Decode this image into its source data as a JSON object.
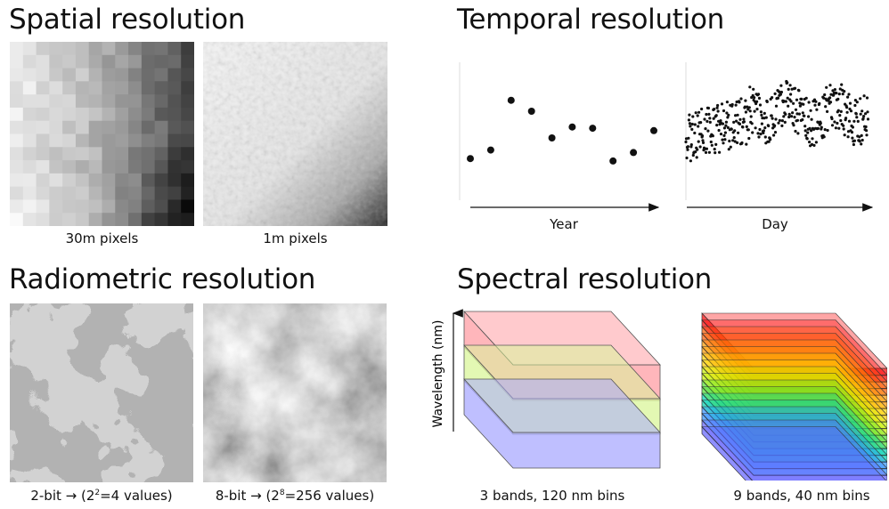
{
  "spatial": {
    "title": "Spatial resolution",
    "caption_coarse": "30m pixels",
    "caption_fine": "1m pixels"
  },
  "temporal": {
    "title": "Temporal resolution",
    "axis_year": "Year",
    "axis_day": "Day",
    "yearly_values": [
      0.45,
      0.52,
      0.93,
      0.84,
      0.62,
      0.71,
      0.7,
      0.43,
      0.5,
      0.68
    ]
  },
  "radiometric": {
    "title": "Radiometric resolution",
    "caption_2bit_a": "2-bit → (2",
    "caption_2bit_sup": "2",
    "caption_2bit_b": "=4 values)",
    "caption_8bit_a": "8-bit → (2",
    "caption_8bit_sup": "8",
    "caption_8bit_b": "=256 values)"
  },
  "spectral": {
    "title": "Spectral resolution",
    "ylabel": "Wavelength (nm)",
    "caption_3band": "3 bands, 120 nm bins",
    "caption_9band": "9 bands, 40 nm bins",
    "band_colors_3": [
      "#ff9ea4",
      "#d9f59a",
      "#a9a9ff"
    ],
    "band_colors_9": [
      "#ff0000",
      "#ff5a00",
      "#ff9a00",
      "#ffd200",
      "#c8f000",
      "#50e030",
      "#00d0b0",
      "#3090ff",
      "#6060ff"
    ]
  }
}
